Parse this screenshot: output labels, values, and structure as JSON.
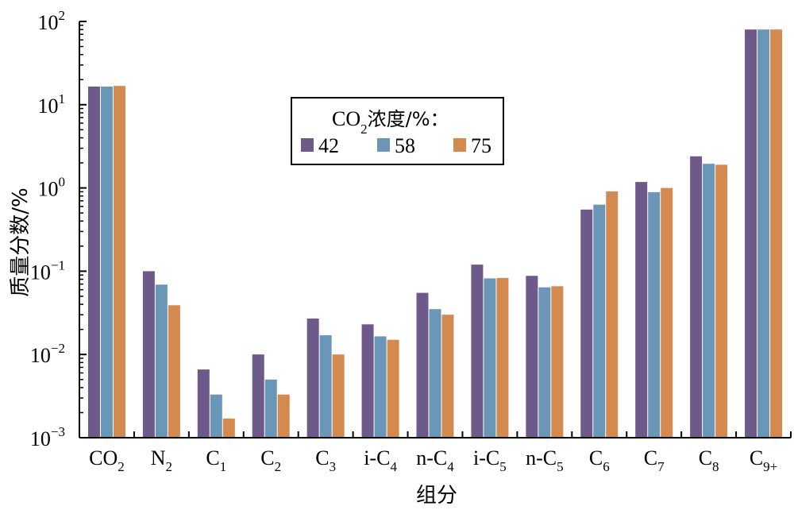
{
  "chart_data": {
    "type": "bar",
    "ylabel": "质量分数/%",
    "xlabel": "组分",
    "yscale": "log",
    "ylim": [
      0.001,
      100
    ],
    "ytick_labels": [
      {
        "base": "10",
        "exp": "−3"
      },
      {
        "base": "10",
        "exp": "−2"
      },
      {
        "base": "10",
        "exp": "−1"
      },
      {
        "base": "10",
        "exp": "0"
      },
      {
        "base": "10",
        "exp": "1"
      },
      {
        "base": "10",
        "exp": "2"
      }
    ],
    "categories": [
      {
        "main": "CO",
        "sub": "2"
      },
      {
        "main": "N",
        "sub": "2"
      },
      {
        "main": "C",
        "sub": "1"
      },
      {
        "main": "C",
        "sub": "2"
      },
      {
        "main": "C",
        "sub": "3"
      },
      {
        "main": "i-C",
        "sub": "4"
      },
      {
        "main": "n-C",
        "sub": "4"
      },
      {
        "main": "i-C",
        "sub": "5"
      },
      {
        "main": "n-C",
        "sub": "5"
      },
      {
        "main": "C",
        "sub": "6"
      },
      {
        "main": "C",
        "sub": "7"
      },
      {
        "main": "C",
        "sub": "8"
      },
      {
        "main": "C",
        "sub": "9+"
      }
    ],
    "legend": {
      "title_main": "CO",
      "title_sub": "2",
      "title_suffix": "浓度/%：",
      "placement": "upper-center"
    },
    "series": [
      {
        "name": "42",
        "color": "#6e5a8a",
        "values": [
          16.5,
          0.1,
          0.0066,
          0.01,
          0.027,
          0.023,
          0.055,
          0.12,
          0.088,
          0.55,
          1.18,
          2.4,
          80
        ]
      },
      {
        "name": "58",
        "color": "#6a96b8",
        "values": [
          16.5,
          0.069,
          0.0033,
          0.005,
          0.017,
          0.0165,
          0.035,
          0.082,
          0.064,
          0.63,
          0.89,
          1.95,
          80
        ]
      },
      {
        "name": "75",
        "color": "#d4894e",
        "values": [
          16.8,
          0.039,
          0.0017,
          0.0033,
          0.01,
          0.015,
          0.03,
          0.083,
          0.066,
          0.91,
          1.0,
          1.9,
          80
        ]
      }
    ]
  }
}
